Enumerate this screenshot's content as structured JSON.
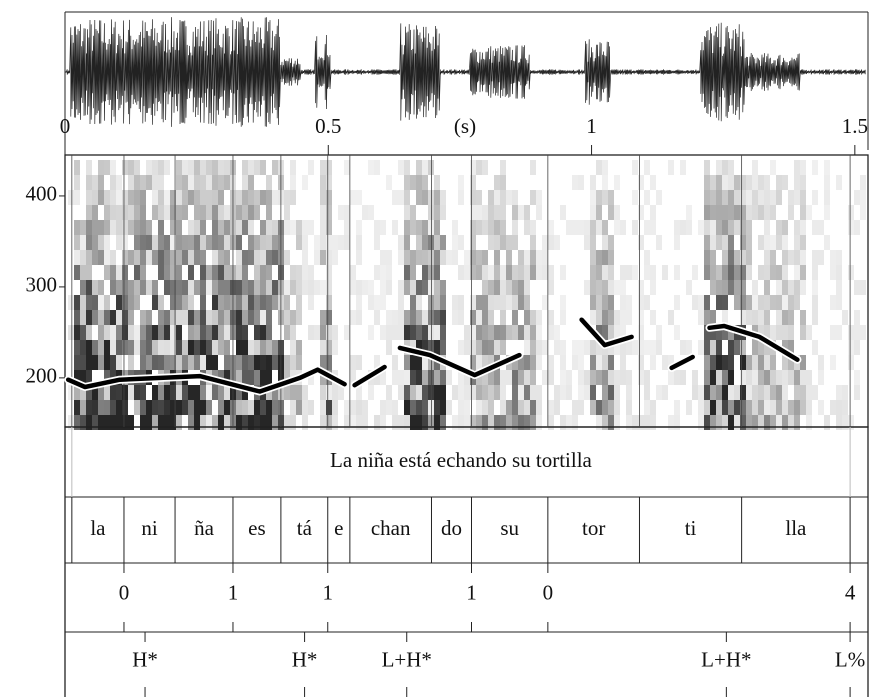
{
  "chart_data": {
    "type": "line",
    "xlabel": "(s)",
    "xlim": [
      0,
      1.525
    ],
    "xticks": [
      0,
      0.5,
      1,
      1.5
    ],
    "ylim": [
      146,
      445
    ],
    "yticks": [
      200,
      300,
      400
    ],
    "color": "#000000",
    "x": [
      0.006,
      0.038,
      0.104,
      0.256,
      0.37,
      0.446,
      0.48,
      0.531,
      null,
      0.55,
      0.607,
      null,
      0.636,
      0.693,
      0.778,
      0.863,
      null,
      0.981,
      1.025,
      1.076,
      null,
      1.152,
      1.192,
      null,
      1.224,
      1.252,
      1.319,
      1.391
    ],
    "values": [
      198,
      190,
      198,
      202,
      185,
      200,
      209,
      193,
      null,
      192,
      212,
      null,
      233,
      225,
      203,
      225,
      null,
      264,
      236,
      245,
      null,
      211,
      223,
      null,
      255,
      257,
      245,
      220
    ],
    "tiers": [
      {
        "boundaries": [
          0.013,
          1.491
        ],
        "labels": [
          "La niña está echando su tortilla"
        ]
      },
      {
        "boundaries": [
          0.013,
          0.112,
          0.209,
          0.319,
          0.41,
          0.499,
          0.541,
          0.696,
          0.772,
          0.917,
          1.091,
          1.285,
          1.491
        ],
        "labels": [
          "la",
          "ni",
          "ña",
          "es",
          "tá",
          "e",
          "chan",
          "do",
          "su",
          "tor",
          "ti",
          "lla"
        ]
      },
      {
        "points": [
          0.112,
          0.319,
          0.499,
          0.772,
          0.917,
          1.491
        ],
        "labels": [
          "0",
          "1",
          "1",
          "1",
          "0",
          "4"
        ]
      },
      {
        "points": [
          0.152,
          0.455,
          0.649,
          1.256,
          1.491
        ],
        "labels": [
          "H*",
          "H*",
          "L+H*",
          "L+H*",
          "L%"
        ]
      }
    ]
  }
}
